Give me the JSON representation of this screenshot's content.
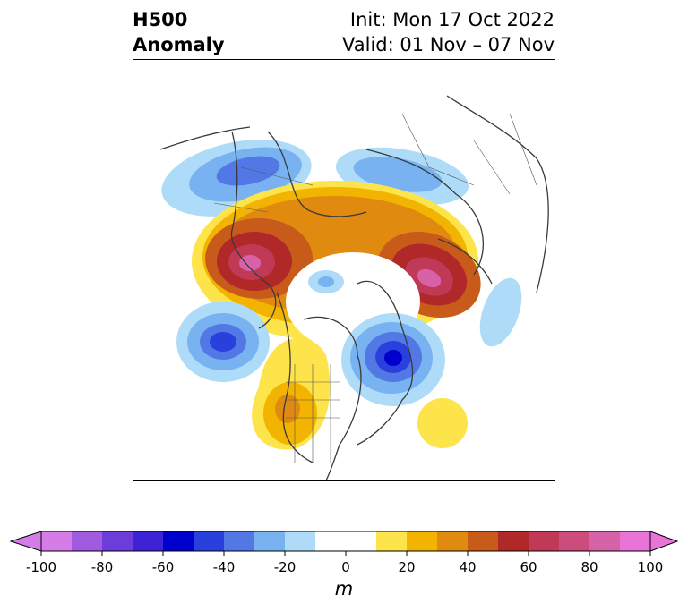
{
  "title": {
    "left_line1": "H500",
    "left_line2": "Anomaly",
    "right_line1": "Init: Mon 17 Oct 2022",
    "right_line2": "Valid: 01 Nov – 07 Nov"
  },
  "colorbar": {
    "unit": "m",
    "levels": [
      -100,
      -90,
      -80,
      -70,
      -60,
      -50,
      -40,
      -30,
      -20,
      -10,
      10,
      20,
      30,
      40,
      50,
      60,
      70,
      80,
      90,
      100
    ],
    "ticks": [
      "-100",
      "-80",
      "-60",
      "-40",
      "-20",
      "0",
      "20",
      "40",
      "60",
      "80",
      "100"
    ],
    "colors": [
      "#d67ce8",
      "#a05ae0",
      "#6c3ddb",
      "#3d22d6",
      "#0000cc",
      "#2a40dc",
      "#5278e6",
      "#78b2f0",
      "#aedcf8",
      "#ffffff",
      "#fde44a",
      "#f2b400",
      "#e08a10",
      "#c85a1a",
      "#b02828",
      "#c03a58",
      "#cc4c7c",
      "#d862a8",
      "#e874d8"
    ],
    "extend": "both"
  },
  "map": {
    "projection": "north-polar-stereographic",
    "anomaly_features": [
      {
        "name": "negative-anomaly-pacific-west",
        "peak": -40
      },
      {
        "name": "negative-anomaly-siberia",
        "peak": -40
      },
      {
        "name": "positive-anomaly-bering",
        "peak": 70
      },
      {
        "name": "positive-anomaly-scandinavia",
        "peak": 70
      },
      {
        "name": "negative-anomaly-gulf-of-alaska",
        "peak": -50
      },
      {
        "name": "negative-anomaly-hudson-bay",
        "peak": -60
      },
      {
        "name": "positive-anomaly-western-us",
        "peak": 40
      },
      {
        "name": "positive-anomaly-atlantic",
        "peak": 20
      },
      {
        "name": "negative-anomaly-pole",
        "peak": -20
      },
      {
        "name": "negative-anomaly-east-atlantic",
        "peak": -20
      }
    ]
  }
}
